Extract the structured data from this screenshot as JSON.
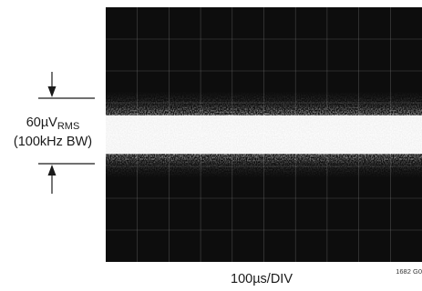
{
  "chart_data": {
    "type": "oscilloscope-trace",
    "xlabel": "100µs/DIV",
    "grid": true,
    "divisions": {
      "x": 10,
      "y": 8
    },
    "trace": {
      "description": "wideband noise band",
      "vertical_center_div": 0,
      "band_height_div": 1.6
    },
    "measurement": {
      "value": "60µV",
      "subscript": "RMS",
      "bandwidth": "(100kHz BW)"
    },
    "figure_id": "1682 G0"
  },
  "colors": {
    "screen": "#0d0d0d",
    "grid": "#7a7a7a",
    "trace": "#ffffff",
    "ink": "#1a1a1a"
  }
}
